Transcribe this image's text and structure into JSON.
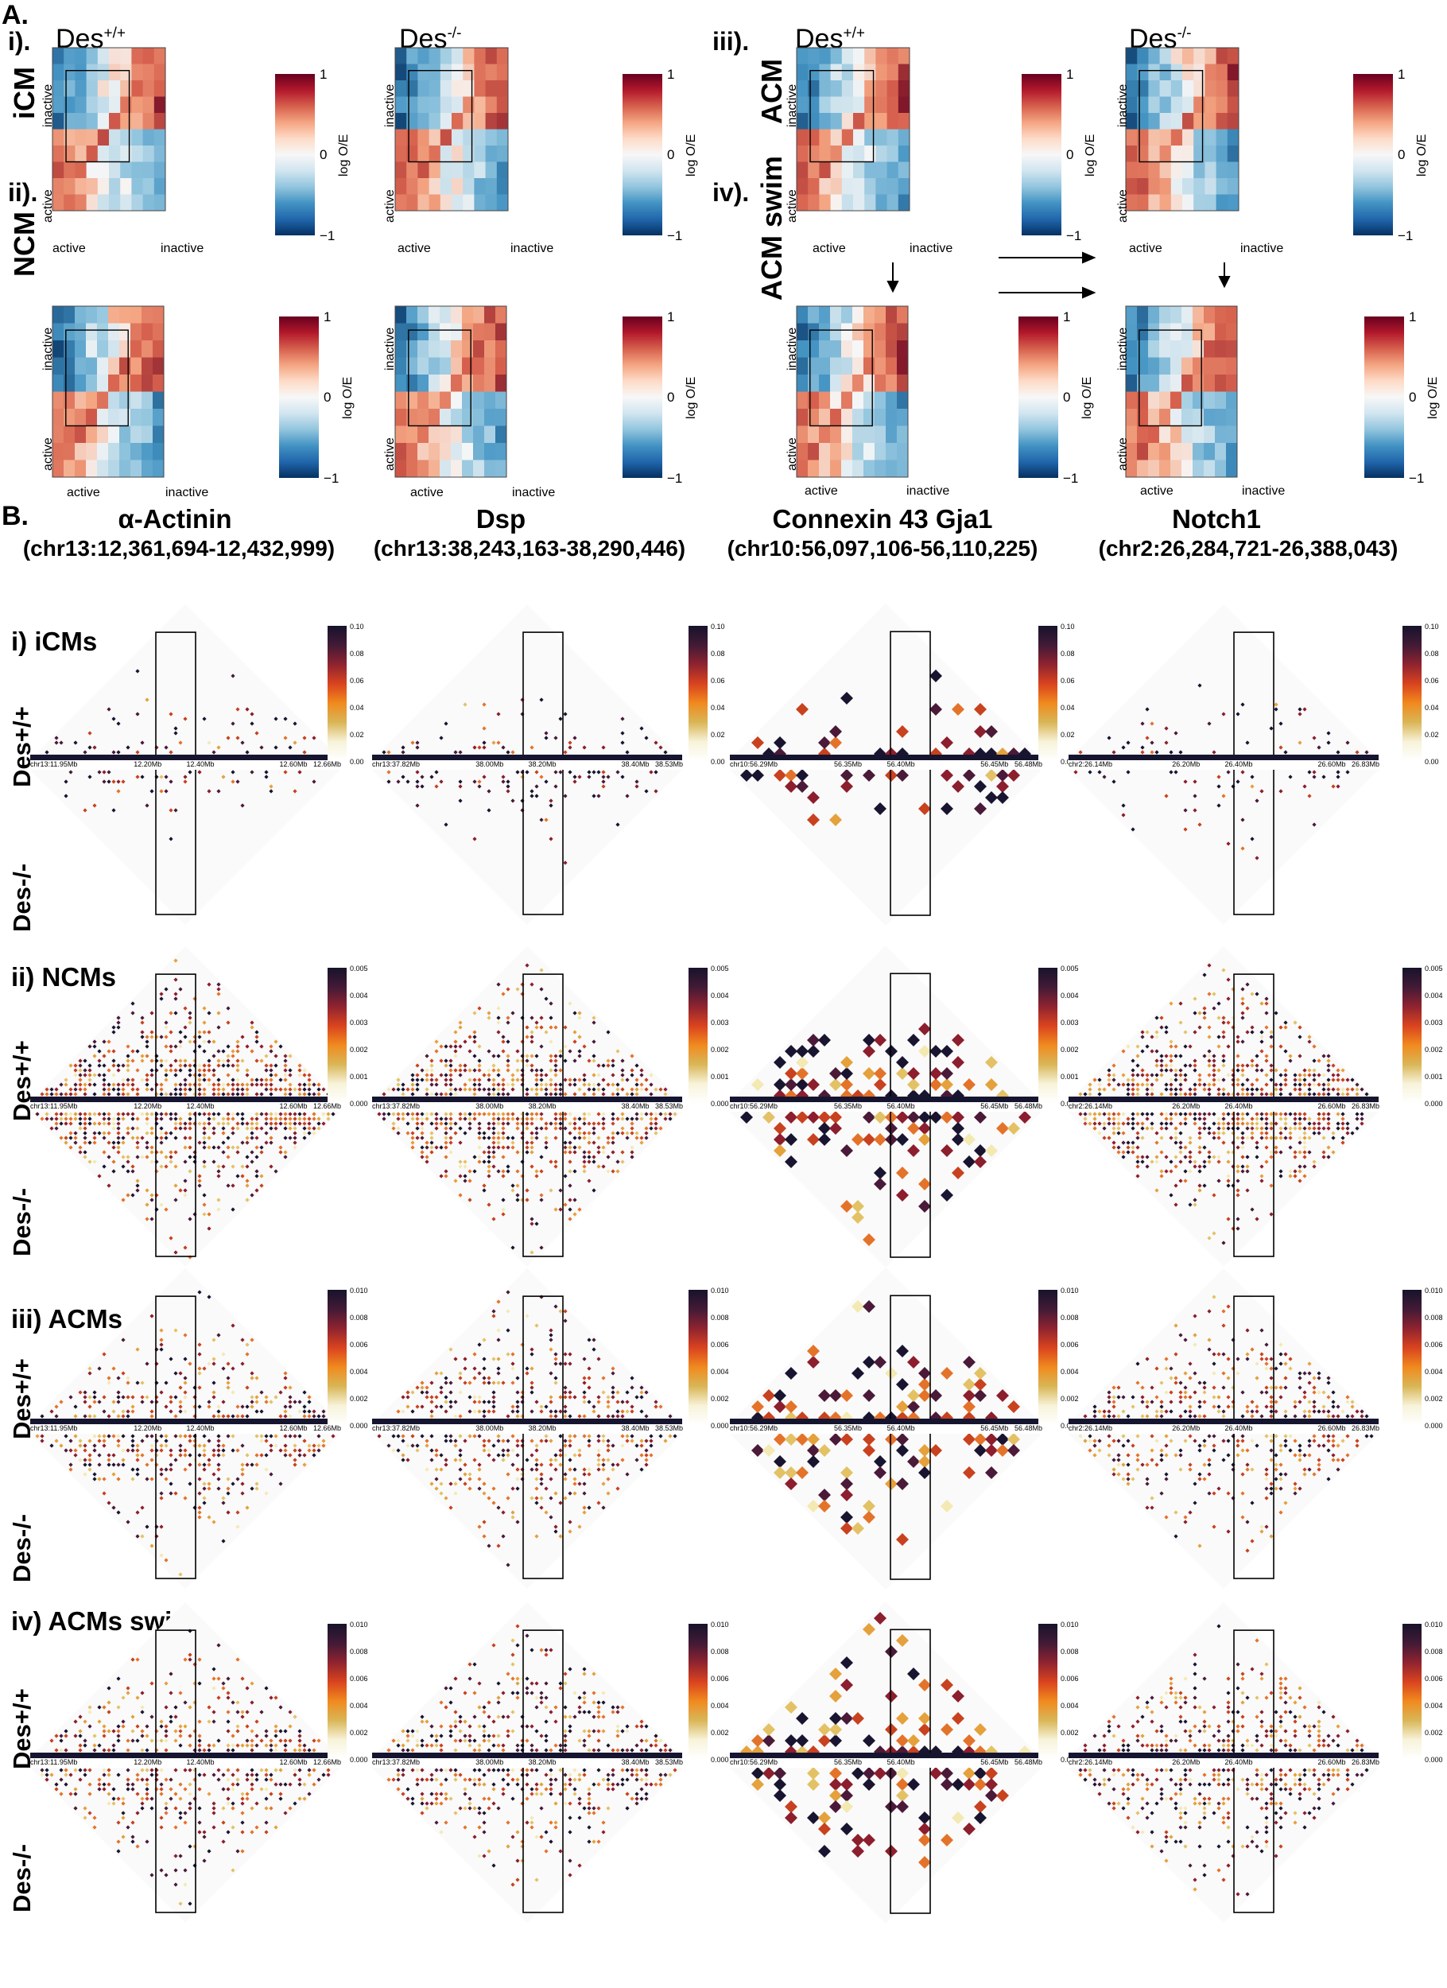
{
  "panelA": {
    "letter": "A.",
    "colorbar": {
      "max": "1",
      "mid": "0",
      "min": "−1",
      "label": "log O/E"
    },
    "axis": {
      "active": "active",
      "inactive": "inactive"
    },
    "genotypes": {
      "wt_base": "Des",
      "wt_sup": "+/+",
      "ko_base": "Des",
      "ko_sup": "-/-"
    },
    "subpanels": [
      {
        "roman": "i).",
        "cell": "iCM"
      },
      {
        "roman": "ii).",
        "cell": "NCM"
      },
      {
        "roman": "iii).",
        "cell": "ACM"
      },
      {
        "roman": "iv).",
        "cell": "ACM swim"
      }
    ]
  },
  "panelB": {
    "letter": "B.",
    "genes": [
      {
        "name": "α-Actinin",
        "coord": "(chr13:12,361,694-12,432,999)",
        "ticks": [
          "chr13:11.95Mb",
          "12.20Mb",
          "12.40Mb",
          "12.60Mb",
          "12.66Mb"
        ]
      },
      {
        "name": "Dsp",
        "coord": "(chr13:38,243,163-38,290,446)",
        "ticks": [
          "chr13:37.82Mb",
          "38.00Mb",
          "38.20Mb",
          "38.40Mb",
          "38.53Mb"
        ]
      },
      {
        "name": "Connexin 43 Gja1",
        "coord": "(chr10:56,097,106-56,110,225)",
        "ticks": [
          "chr10:56.29Mb",
          "56.35Mb",
          "56.40Mb",
          "56.45Mb",
          "56.48Mb"
        ]
      },
      {
        "name": "Notch1",
        "coord": "(chr2:26,284,721-26,388,043)",
        "ticks": [
          "chr2:26.14Mb",
          "26.20Mb",
          "26.40Mb",
          "26.60Mb",
          "26.83Mb"
        ]
      }
    ],
    "rows": [
      {
        "label": "i) iCMs",
        "cbar": [
          "0.10",
          "0.08",
          "0.06",
          "0.04",
          "0.02",
          "0.00"
        ]
      },
      {
        "label": "ii) NCMs",
        "cbar": [
          "0.005",
          "0.004",
          "0.003",
          "0.002",
          "0.001",
          "0.000"
        ]
      },
      {
        "label": "iii) ACMs",
        "cbar": [
          "0.010",
          "0.008",
          "0.006",
          "0.004",
          "0.002",
          "0.000"
        ]
      },
      {
        "label": "iv) ACMs swim",
        "cbar": [
          "0.010",
          "0.008",
          "0.006",
          "0.004",
          "0.002",
          "0.000"
        ]
      }
    ],
    "genotype_labels": {
      "wt": "Des+/+",
      "ko": "Des-/-"
    }
  }
}
